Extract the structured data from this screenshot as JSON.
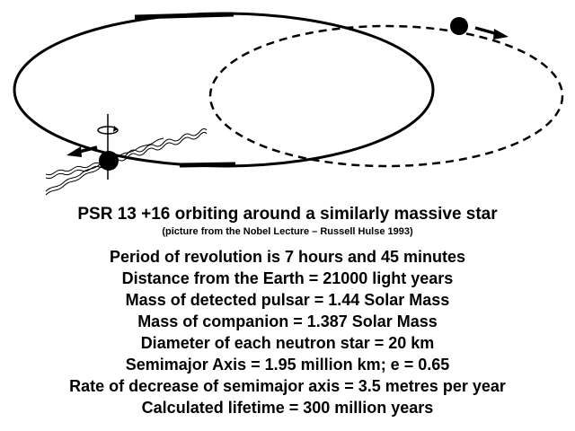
{
  "title": "PSR 13 +16  orbiting around a similarly massive star",
  "credit": "(picture from the Nobel Lecture – Russell Hulse 1993)",
  "facts": [
    "Period of revolution is 7 hours and 45 minutes",
    "Distance from the Earth = 21000 light years",
    "Mass of detected pulsar = 1.44 Solar Mass",
    "Mass of companion = 1.387 Solar Mass",
    "Diameter of each neutron star = 20 km",
    "Semimajor Axis = 1.95 million km; e = 0.65",
    "Rate of decrease of semimajor axis = 3.5 metres per year",
    "Calculated lifetime = 300 million years"
  ],
  "colors": {
    "ink": "#000000",
    "background": "#ffffff"
  },
  "icons": [
    "pulsar-star",
    "companion-star",
    "motion-arrow",
    "radio-beam",
    "rotation-axis"
  ]
}
